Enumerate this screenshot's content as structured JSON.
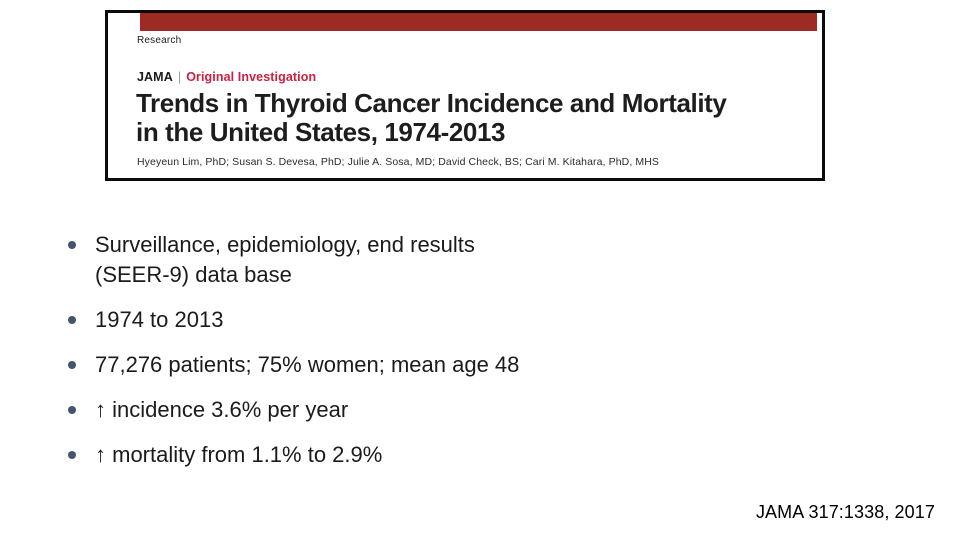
{
  "slide": {
    "background_color": "#ffffff"
  },
  "article_header": {
    "kicker": "Research",
    "journal": "JAMA",
    "separator": "|",
    "category": "Original Investigation",
    "title_line1": "Trends in Thyroid Cancer Incidence and Mortality",
    "title_line2": "in the United States, 1974-2013",
    "authors": "Hyeyeun Lim, PhD; Susan S. Devesa, PhD; Julie A. Sosa, MD; David Check, BS; Cari M. Kitahara, PhD, MHS",
    "banner_color": "#9e2b23",
    "category_color": "#cd1f3e",
    "border_color": "#0b0b0b"
  },
  "bullets": [
    {
      "lines": [
        "Surveillance, epidemiology, end results",
        "(SEER-9) data base"
      ]
    },
    {
      "lines": [
        "1974 to 2013"
      ]
    },
    {
      "lines": [
        "77,276 patients; 75% women; mean age 48"
      ]
    },
    {
      "lines": [
        "↑ incidence 3.6% per year"
      ]
    },
    {
      "lines": [
        "↑ mortality from 1.1% to 2.9%"
      ]
    }
  ],
  "bullet_marker_color": "#44546a",
  "citation": "JAMA 317:1338, 2017"
}
